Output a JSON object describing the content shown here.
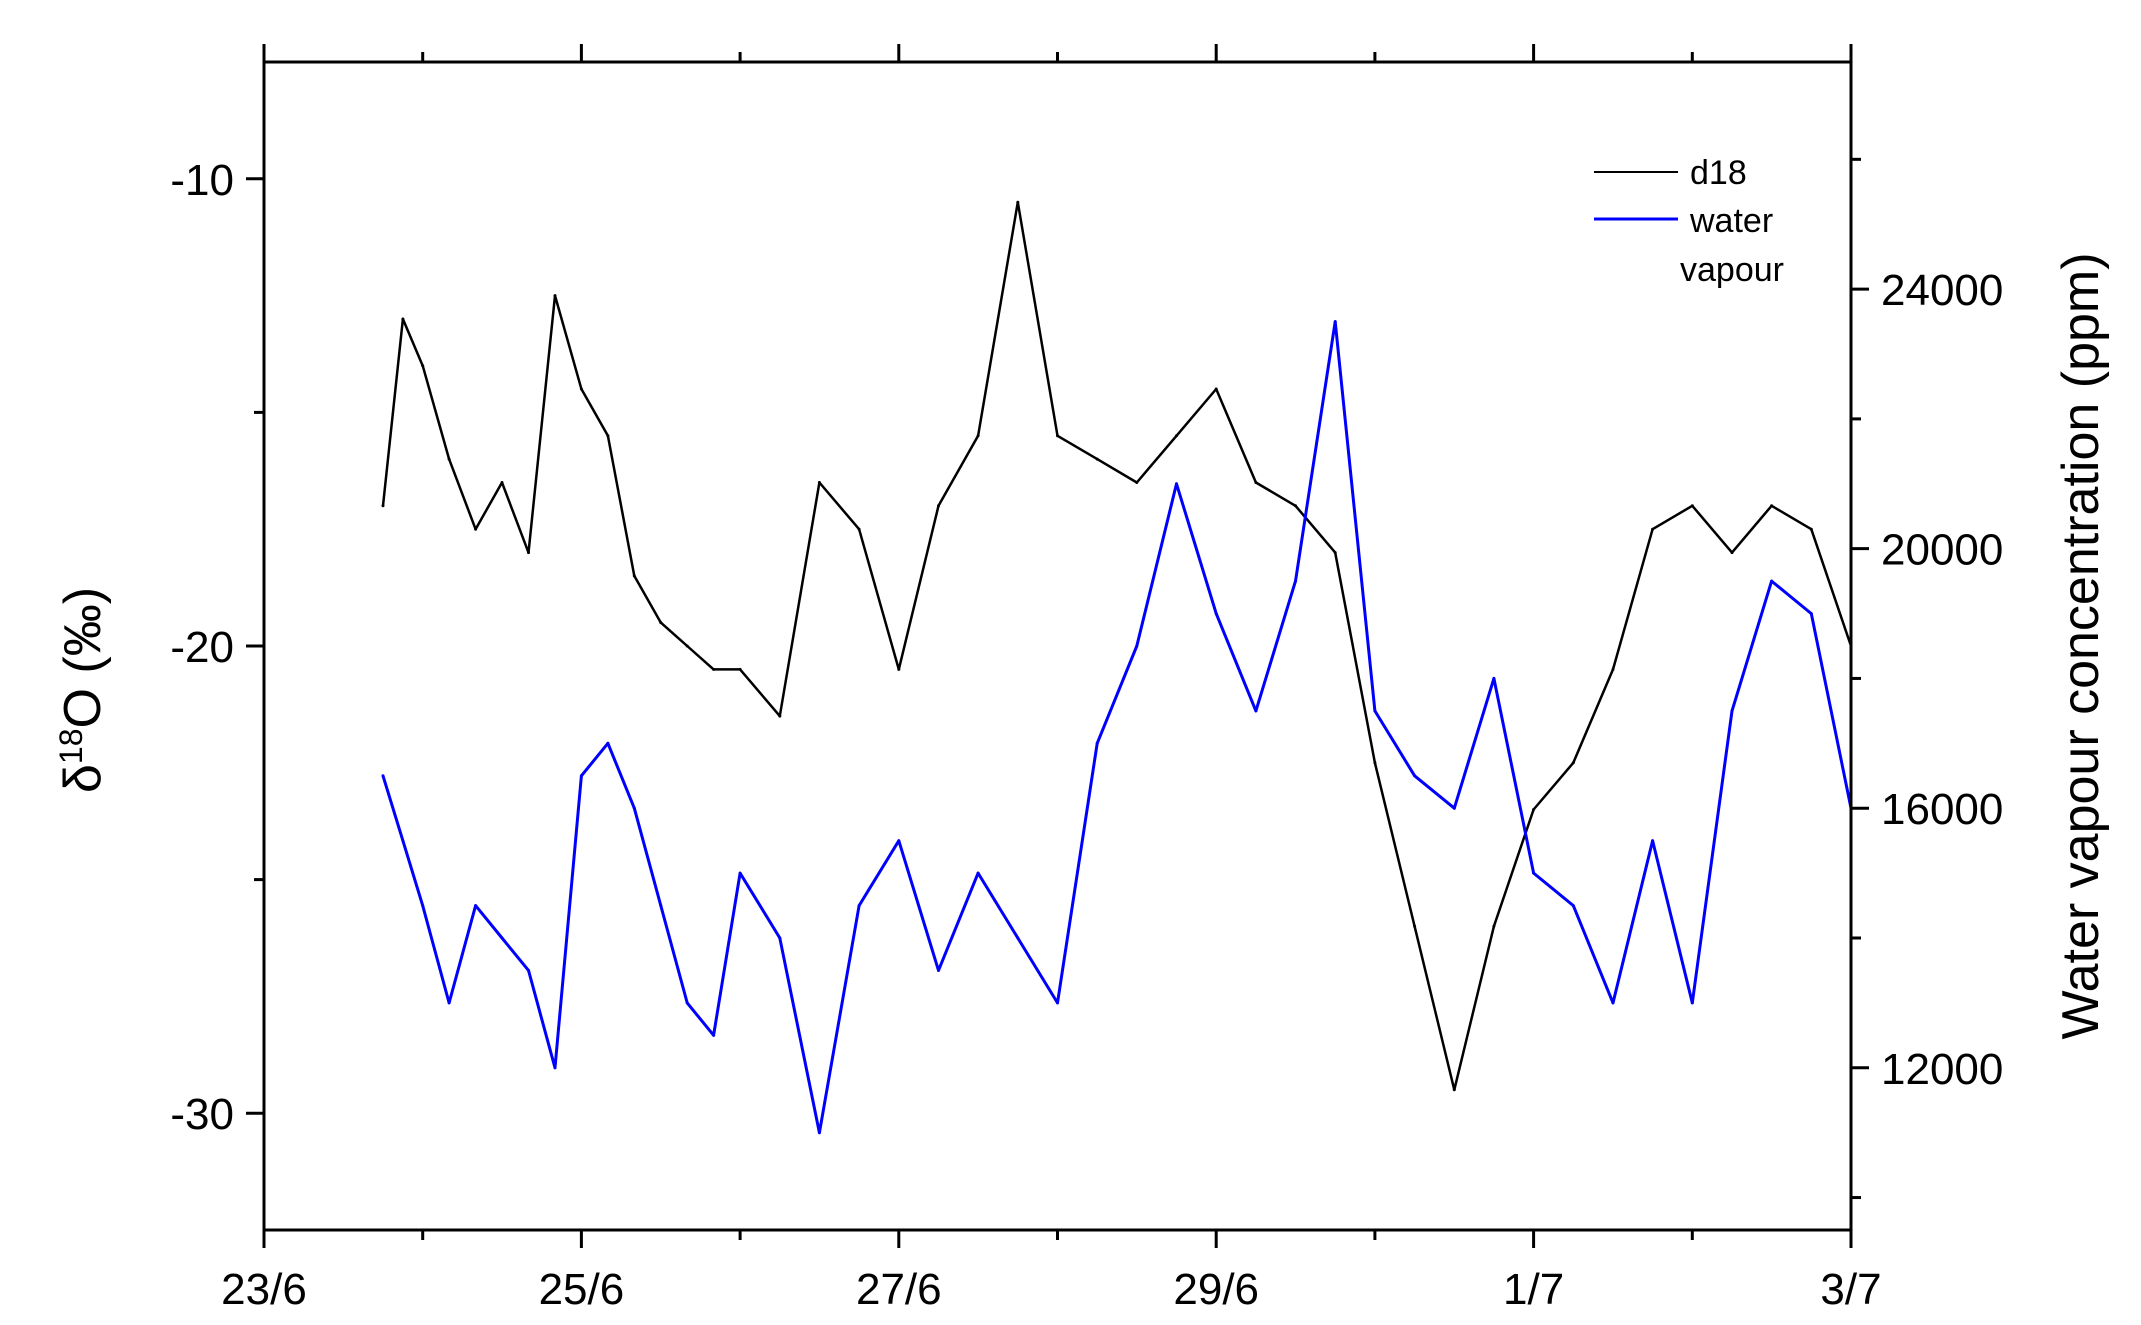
{
  "chart_data": {
    "type": "line",
    "x_tick_labels": [
      "23/6",
      "25/6",
      "27/6",
      "29/6",
      "1/7",
      "3/7"
    ],
    "x_range_days": [
      "2012-06-23",
      "2012-07-03"
    ],
    "left_axis": {
      "label_symbol": "δ",
      "label_superscript": "18",
      "label_rest": "O (‰)",
      "ylim": [
        -32.5,
        -7.5
      ],
      "ticks": [
        "-10",
        "-20",
        "-30"
      ],
      "tick_values": [
        -10,
        -20,
        -30
      ]
    },
    "right_axis": {
      "label": "Water vapour concentration (ppm)",
      "ylim": [
        9500,
        27500
      ],
      "ticks": [
        "12000",
        "16000",
        "20000",
        "24000"
      ],
      "tick_values": [
        12000,
        16000,
        20000,
        24000
      ]
    },
    "legend": {
      "placement": "top-right",
      "entries": [
        {
          "label": "d18",
          "color": "#000000"
        },
        {
          "label_line1": "water",
          "label_line2": "vapour",
          "color": "#0000ff"
        }
      ]
    },
    "series": [
      {
        "name": "d18",
        "axis": "left",
        "color": "#000000",
        "x": [
          "2012-06-23 18:00",
          "2012-06-23 21:00",
          "2012-06-24 00:00",
          "2012-06-24 04:00",
          "2012-06-24 08:00",
          "2012-06-24 12:00",
          "2012-06-24 16:00",
          "2012-06-24 20:00",
          "2012-06-25 00:00",
          "2012-06-25 04:00",
          "2012-06-25 08:00",
          "2012-06-25 12:00",
          "2012-06-25 16:00",
          "2012-06-25 20:00",
          "2012-06-26 00:00",
          "2012-06-26 06:00",
          "2012-06-26 12:00",
          "2012-06-26 18:00",
          "2012-06-27 00:00",
          "2012-06-27 06:00",
          "2012-06-27 12:00",
          "2012-06-27 18:00",
          "2012-06-28 00:00",
          "2012-06-28 06:00",
          "2012-06-28 12:00",
          "2012-06-28 18:00",
          "2012-06-29 00:00",
          "2012-06-29 06:00",
          "2012-06-29 12:00",
          "2012-06-29 18:00",
          "2012-06-30 00:00",
          "2012-06-30 06:00",
          "2012-06-30 12:00",
          "2012-06-30 18:00",
          "2012-07-01 00:00",
          "2012-07-01 06:00",
          "2012-07-01 12:00",
          "2012-07-01 18:00",
          "2012-07-02 00:00",
          "2012-07-02 06:00",
          "2012-07-02 12:00",
          "2012-07-02 18:00",
          "2012-07-03 00:00"
        ],
        "values": [
          -17,
          -13,
          -14,
          -16,
          -17.5,
          -16.5,
          -18,
          -12.5,
          -14.5,
          -15.5,
          -18.5,
          -19.5,
          -20,
          -20.5,
          -20.5,
          -21.5,
          -16.5,
          -17.5,
          -20.5,
          -17,
          -15.5,
          -10.5,
          -15.5,
          -16,
          -16.5,
          -15.5,
          -14.5,
          -16.5,
          -17,
          -18,
          -22.5,
          -26,
          -29.5,
          -26,
          -23.5,
          -22.5,
          -20.5,
          -17.5,
          -17,
          -18,
          -17,
          -17.5,
          -20
        ]
      },
      {
        "name": "water vapour",
        "axis": "right",
        "color": "#0000ff",
        "x": [
          "2012-06-23 18:00",
          "2012-06-23 21:00",
          "2012-06-24 00:00",
          "2012-06-24 04:00",
          "2012-06-24 08:00",
          "2012-06-24 12:00",
          "2012-06-24 16:00",
          "2012-06-24 20:00",
          "2012-06-25 00:00",
          "2012-06-25 04:00",
          "2012-06-25 08:00",
          "2012-06-25 12:00",
          "2012-06-25 16:00",
          "2012-06-25 20:00",
          "2012-06-26 00:00",
          "2012-06-26 06:00",
          "2012-06-26 12:00",
          "2012-06-26 18:00",
          "2012-06-27 00:00",
          "2012-06-27 06:00",
          "2012-06-27 12:00",
          "2012-06-27 18:00",
          "2012-06-28 00:00",
          "2012-06-28 06:00",
          "2012-06-28 12:00",
          "2012-06-28 18:00",
          "2012-06-29 00:00",
          "2012-06-29 06:00",
          "2012-06-29 12:00",
          "2012-06-29 18:00",
          "2012-06-30 00:00",
          "2012-06-30 06:00",
          "2012-06-30 12:00",
          "2012-06-30 18:00",
          "2012-07-01 00:00",
          "2012-07-01 06:00",
          "2012-07-01 12:00",
          "2012-07-01 18:00",
          "2012-07-02 00:00",
          "2012-07-02 06:00",
          "2012-07-02 12:00",
          "2012-07-02 18:00",
          "2012-07-03 00:00"
        ],
        "values": [
          16500,
          15500,
          14500,
          13000,
          14500,
          14000,
          13500,
          12000,
          16500,
          17000,
          16000,
          14500,
          13000,
          12500,
          15000,
          14000,
          11000,
          14500,
          15500,
          13500,
          15000,
          14000,
          13000,
          17000,
          18500,
          21000,
          19000,
          17500,
          19500,
          23500,
          17500,
          16500,
          16000,
          18000,
          15000,
          14500,
          13000,
          15500,
          13000,
          17500,
          19500,
          19000,
          16000
        ]
      }
    ]
  }
}
